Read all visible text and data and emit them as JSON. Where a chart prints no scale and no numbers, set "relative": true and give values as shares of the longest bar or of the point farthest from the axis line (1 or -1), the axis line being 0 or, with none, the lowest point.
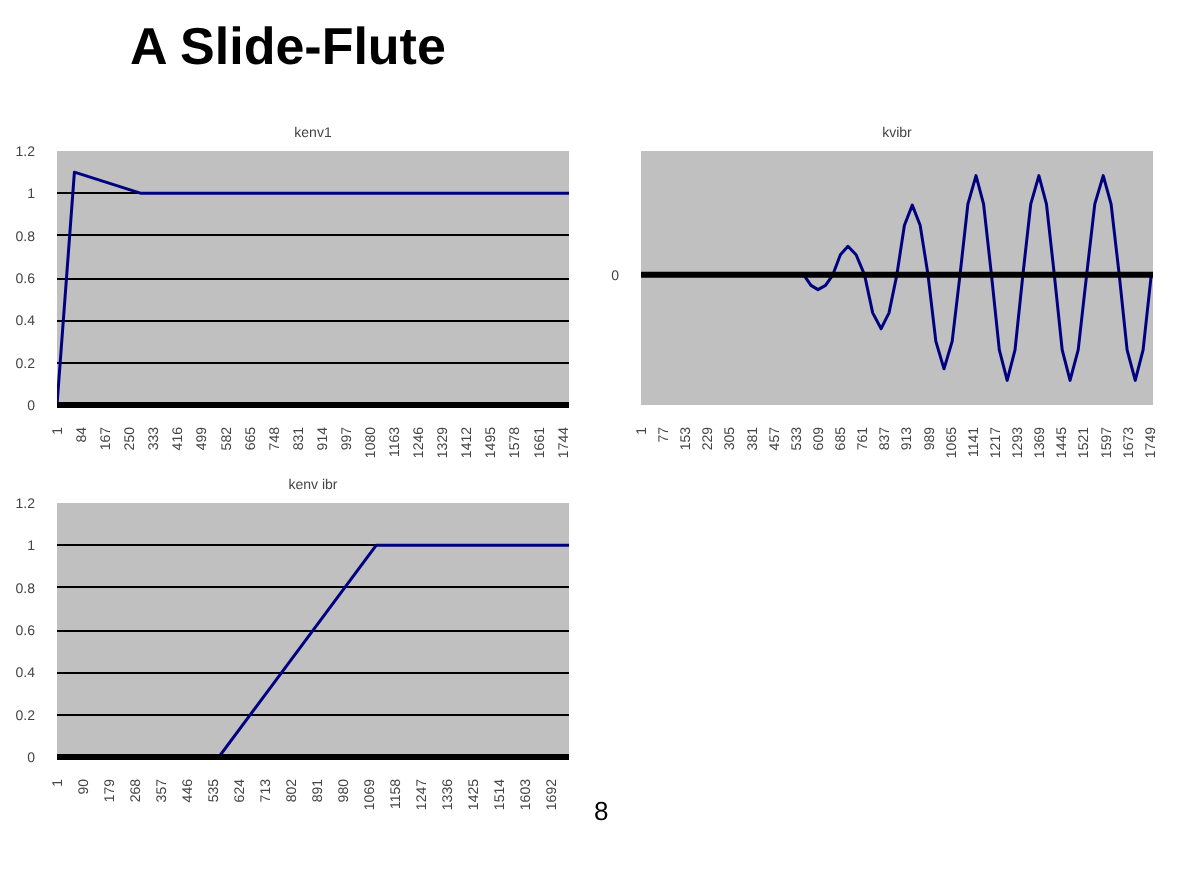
{
  "chart_data": [
    {
      "type": "other",
      "title": "A Slide-Flute",
      "annotations": [
        "8"
      ]
    },
    {
      "type": "line",
      "title": "kenv1",
      "x": [
        1,
        61,
        291,
        1766
      ],
      "series": [
        {
          "color": "#000080",
          "values": [
            0,
            1.1,
            1.0,
            1.0
          ]
        }
      ],
      "xlim": [
        1,
        1766
      ],
      "xticks": [
        1,
        84,
        167,
        250,
        333,
        416,
        499,
        582,
        665,
        748,
        831,
        914,
        997,
        1080,
        1163,
        1246,
        1329,
        1412,
        1495,
        1578,
        1661,
        1744
      ],
      "ylim": [
        0,
        1.2
      ],
      "yticks": [
        0,
        0.2,
        0.4,
        0.6,
        0.8,
        1,
        1.2
      ],
      "grid": "y"
    },
    {
      "type": "line",
      "title": "kvibr",
      "relative": true,
      "x": [
        1,
        560,
        585,
        609,
        635,
        660,
        686,
        712,
        740,
        769,
        797,
        826,
        853,
        880,
        906,
        933,
        960,
        987,
        1014,
        1042,
        1070,
        1097,
        1124,
        1152,
        1178,
        1205,
        1232,
        1259,
        1286,
        1313,
        1340,
        1368,
        1394,
        1421,
        1448,
        1475,
        1503,
        1532,
        1560,
        1589,
        1616,
        1644,
        1671,
        1699,
        1726,
        1754
      ],
      "series": [
        {
          "color": "#000080",
          "values": [
            0,
            0,
            -0.1,
            -0.14,
            -0.1,
            0,
            0.19,
            0.27,
            0.19,
            0,
            -0.36,
            -0.51,
            -0.36,
            0,
            0.47,
            0.66,
            0.47,
            0,
            -0.63,
            -0.89,
            -0.63,
            0,
            0.67,
            0.94,
            0.67,
            0,
            -0.71,
            -1,
            -0.71,
            0,
            0.67,
            0.94,
            0.67,
            0,
            -0.71,
            -1,
            -0.71,
            0,
            0.67,
            0.94,
            0.67,
            0,
            -0.71,
            -1,
            -0.71,
            0
          ]
        }
      ],
      "xlim": [
        1,
        1760
      ],
      "xticks": [
        1,
        77,
        153,
        229,
        305,
        381,
        457,
        533,
        609,
        685,
        761,
        837,
        913,
        989,
        1065,
        1141,
        1217,
        1293,
        1369,
        1445,
        1521,
        1597,
        1673,
        1749
      ],
      "ref_lines": [
        {
          "axis": "y",
          "value": 0,
          "label": "0"
        }
      ]
    },
    {
      "type": "line",
      "title": "kenv ibr",
      "x": [
        1,
        555,
        1093,
        1753
      ],
      "series": [
        {
          "color": "#000080",
          "values": [
            0,
            0,
            1,
            1
          ]
        }
      ],
      "xlim": [
        1,
        1753
      ],
      "xticks": [
        1,
        90,
        179,
        268,
        357,
        446,
        535,
        624,
        713,
        802,
        891,
        980,
        1069,
        1158,
        1247,
        1336,
        1425,
        1514,
        1603,
        1692
      ],
      "ylim": [
        0,
        1.2
      ],
      "yticks": [
        0,
        0.2,
        0.4,
        0.6,
        0.8,
        1,
        1.2
      ],
      "grid": "y"
    }
  ]
}
